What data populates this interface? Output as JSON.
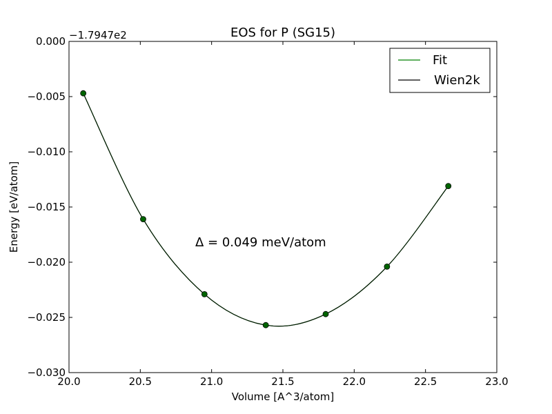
{
  "chart_data": {
    "type": "line",
    "title": "EOS for P (SG15)",
    "xlabel": "Volume [A^3/atom]",
    "ylabel": "Energy [eV/atom]",
    "offset_label": "−1.7947e2",
    "annotation": "Δ = 0.049 meV/atom",
    "xlim": [
      20.0,
      23.0
    ],
    "ylim": [
      -0.03,
      0.0
    ],
    "xticks": [
      20.0,
      20.5,
      21.0,
      21.5,
      22.0,
      22.5,
      23.0
    ],
    "xtick_labels": [
      "20.0",
      "20.5",
      "21.0",
      "21.5",
      "22.0",
      "22.5",
      "23.0"
    ],
    "yticks": [
      0.0,
      -0.005,
      -0.01,
      -0.015,
      -0.02,
      -0.025,
      -0.03
    ],
    "ytick_labels": [
      "0.000",
      "−0.005",
      "−0.010",
      "−0.015",
      "−0.020",
      "−0.025",
      "−0.030"
    ],
    "legend_position": "top-right",
    "legend": [
      {
        "name": "Fit",
        "color": "#008000"
      },
      {
        "name": "Wien2k",
        "color": "#000000"
      }
    ],
    "points": {
      "x": [
        20.1,
        20.52,
        20.95,
        21.38,
        21.8,
        22.23,
        22.66
      ],
      "y": [
        -0.0047,
        -0.0161,
        -0.0229,
        -0.0257,
        -0.0247,
        -0.0204,
        -0.0131
      ],
      "color": "#006400"
    },
    "curve_colors": {
      "fit": "#008000",
      "wien2k": "#000000"
    }
  }
}
